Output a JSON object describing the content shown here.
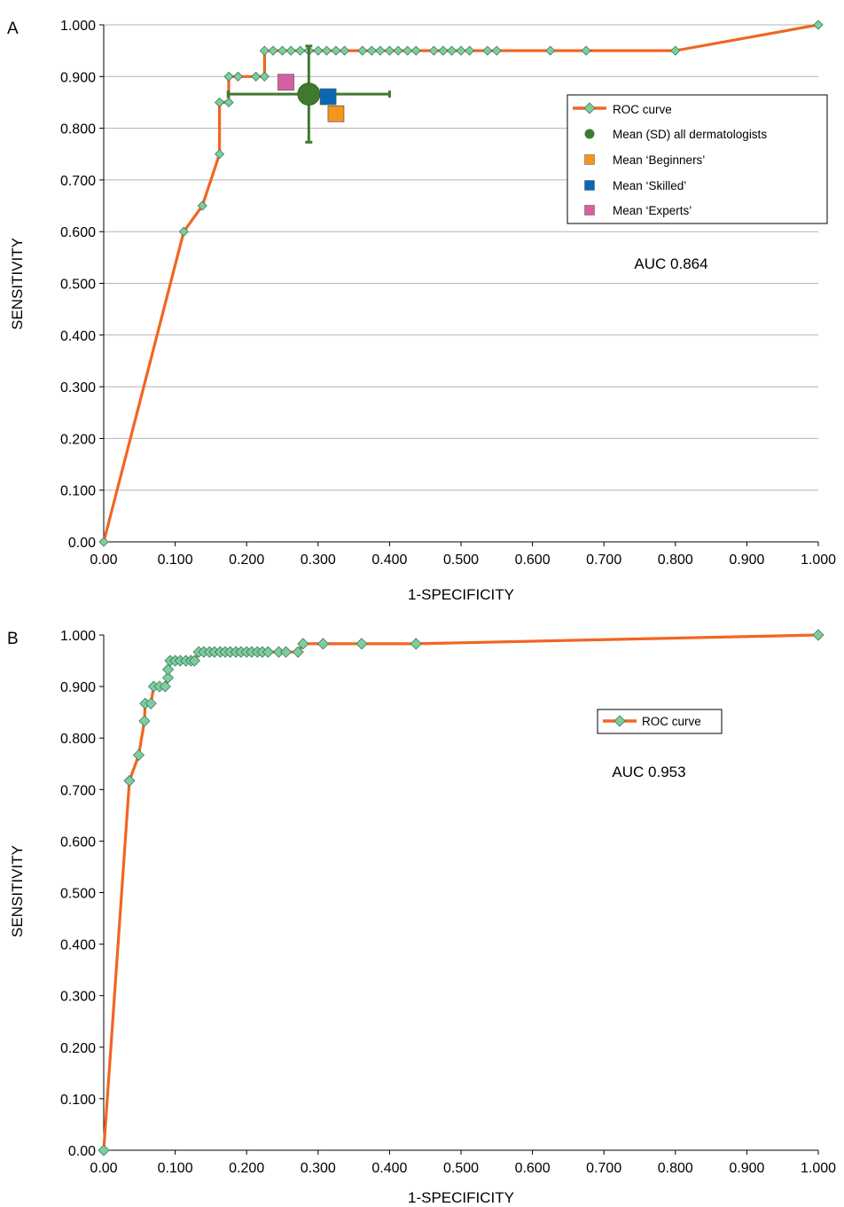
{
  "chart_data": [
    {
      "panel_label": "A",
      "type": "line",
      "xlabel": "1-SPECIFICITY",
      "ylabel": "SENSITIVITY",
      "xlim": [
        0,
        1
      ],
      "ylim": [
        0,
        1
      ],
      "x_ticks": [
        "0.00",
        "0.100",
        "0.200",
        "0.300",
        "0.400",
        "0.500",
        "0.600",
        "0.700",
        "0.800",
        "0.900",
        "1.000"
      ],
      "y_ticks": [
        "0.00",
        "0.100",
        "0.200",
        "0.300",
        "0.400",
        "0.500",
        "0.600",
        "0.700",
        "0.800",
        "0.900",
        "1.000"
      ],
      "grid": "horizontal",
      "annotation": "AUC 0.864",
      "colors": {
        "curve": "#f26522",
        "marker_fill": "#7fcc9f",
        "marker_stroke": "#3a7a5a",
        "all": "#3f7a2f",
        "beginners": "#f7941d",
        "skilled": "#0a67b3",
        "experts": "#d65fa3"
      },
      "legend": {
        "position": "top-right",
        "entries": [
          "ROC curve",
          "Mean (SD) all dermatologists",
          "Mean ‘Beginners’",
          "Mean ‘Skilled’",
          "Mean ‘Experts’"
        ]
      },
      "series": [
        {
          "name": "ROC curve",
          "points": [
            [
              0,
              0
            ],
            [
              0.112,
              0.6
            ],
            [
              0.138,
              0.65
            ],
            [
              0.162,
              0.75
            ],
            [
              0.162,
              0.85
            ],
            [
              0.175,
              0.85
            ],
            [
              0.175,
              0.9
            ],
            [
              0.188,
              0.9
            ],
            [
              0.213,
              0.9
            ],
            [
              0.225,
              0.9
            ],
            [
              0.225,
              0.95
            ],
            [
              0.237,
              0.95
            ],
            [
              0.25,
              0.95
            ],
            [
              0.262,
              0.95
            ],
            [
              0.275,
              0.95
            ],
            [
              0.287,
              0.95
            ],
            [
              0.3,
              0.95
            ],
            [
              0.312,
              0.95
            ],
            [
              0.325,
              0.95
            ],
            [
              0.337,
              0.95
            ],
            [
              0.362,
              0.95
            ],
            [
              0.375,
              0.95
            ],
            [
              0.387,
              0.95
            ],
            [
              0.4,
              0.95
            ],
            [
              0.412,
              0.95
            ],
            [
              0.425,
              0.95
            ],
            [
              0.437,
              0.95
            ],
            [
              0.462,
              0.95
            ],
            [
              0.475,
              0.95
            ],
            [
              0.487,
              0.95
            ],
            [
              0.5,
              0.95
            ],
            [
              0.512,
              0.95
            ],
            [
              0.537,
              0.95
            ],
            [
              0.55,
              0.95
            ],
            [
              0.625,
              0.95
            ],
            [
              0.675,
              0.95
            ],
            [
              0.8,
              0.95
            ],
            [
              1,
              1
            ]
          ]
        }
      ],
      "means": [
        {
          "name": "Mean (SD) all dermatologists",
          "x": 0.287,
          "y": 0.866,
          "x_sd": 0.113,
          "y_sd": 0.093
        },
        {
          "name": "Mean ‘Beginners’",
          "x": 0.325,
          "y": 0.828
        },
        {
          "name": "Mean ‘Skilled’",
          "x": 0.314,
          "y": 0.861
        },
        {
          "name": "Mean ‘Experts’",
          "x": 0.255,
          "y": 0.889
        }
      ]
    },
    {
      "panel_label": "B",
      "type": "line",
      "xlabel": "1-SPECIFICITY",
      "ylabel": "SENSITIVITY",
      "xlim": [
        0,
        1
      ],
      "ylim": [
        0,
        1
      ],
      "x_ticks": [
        "0.00",
        "0.100",
        "0.200",
        "0.300",
        "0.400",
        "0.500",
        "0.600",
        "0.700",
        "0.800",
        "0.900",
        "1.000"
      ],
      "y_ticks": [
        "0.00",
        "0.100",
        "0.200",
        "0.300",
        "0.400",
        "0.500",
        "0.600",
        "0.700",
        "0.800",
        "0.900",
        "1.000"
      ],
      "grid": "none",
      "annotation": "AUC 0.953",
      "colors": {
        "curve": "#f26522",
        "marker_fill": "#7fcc9f",
        "marker_stroke": "#3a7a5a"
      },
      "legend": {
        "position": "top-right",
        "entries": [
          "ROC curve"
        ]
      },
      "series": [
        {
          "name": "ROC curve",
          "points": [
            [
              0,
              0
            ],
            [
              0.036,
              0.717
            ],
            [
              0.049,
              0.767
            ],
            [
              0.057,
              0.833
            ],
            [
              0.058,
              0.867
            ],
            [
              0.066,
              0.867
            ],
            [
              0.07,
              0.9
            ],
            [
              0.078,
              0.9
            ],
            [
              0.086,
              0.9
            ],
            [
              0.09,
              0.917
            ],
            [
              0.09,
              0.933
            ],
            [
              0.093,
              0.95
            ],
            [
              0.1,
              0.95
            ],
            [
              0.107,
              0.95
            ],
            [
              0.115,
              0.95
            ],
            [
              0.122,
              0.95
            ],
            [
              0.127,
              0.95
            ],
            [
              0.133,
              0.967
            ],
            [
              0.14,
              0.967
            ],
            [
              0.148,
              0.967
            ],
            [
              0.155,
              0.967
            ],
            [
              0.163,
              0.967
            ],
            [
              0.17,
              0.967
            ],
            [
              0.177,
              0.967
            ],
            [
              0.185,
              0.967
            ],
            [
              0.192,
              0.967
            ],
            [
              0.2,
              0.967
            ],
            [
              0.207,
              0.967
            ],
            [
              0.215,
              0.967
            ],
            [
              0.222,
              0.967
            ],
            [
              0.23,
              0.967
            ],
            [
              0.245,
              0.967
            ],
            [
              0.255,
              0.967
            ],
            [
              0.272,
              0.967
            ],
            [
              0.279,
              0.983
            ],
            [
              0.307,
              0.983
            ],
            [
              0.361,
              0.983
            ],
            [
              0.437,
              0.983
            ],
            [
              1,
              1
            ]
          ]
        }
      ]
    }
  ]
}
